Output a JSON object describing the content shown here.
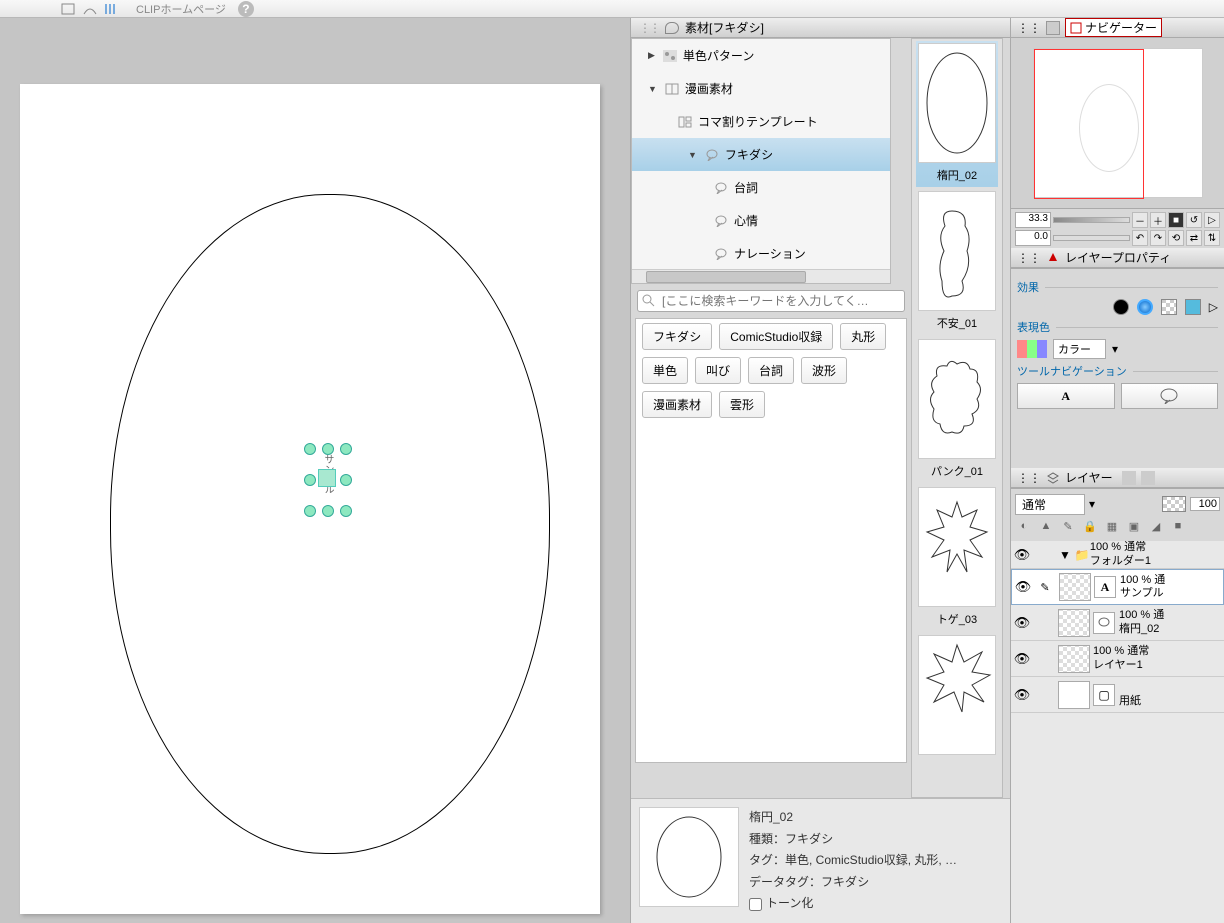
{
  "toolbar": {
    "clip_label": "CLIPホームページ"
  },
  "canvas": {
    "sample_text": "サンプル"
  },
  "materials": {
    "tab_title": "素材[フキダシ]",
    "tree": [
      {
        "label": "単色パターン",
        "lvl": 1,
        "tri": "▶",
        "icon": "pattern"
      },
      {
        "label": "漫画素材",
        "lvl": 1,
        "tri": "▼",
        "icon": "manga"
      },
      {
        "label": "コマ割りテンプレート",
        "lvl": 2,
        "tri": "",
        "icon": "frame"
      },
      {
        "label": "フキダシ",
        "lvl": 3,
        "tri": "▼",
        "icon": "balloon",
        "sel": true
      },
      {
        "label": "台詞",
        "lvl": 4,
        "tri": "",
        "icon": "balloon"
      },
      {
        "label": "心情",
        "lvl": 4,
        "tri": "",
        "icon": "balloon"
      },
      {
        "label": "ナレーション",
        "lvl": 4,
        "tri": "",
        "icon": "balloon"
      }
    ],
    "search_placeholder": "[ここに検索キーワードを入力してく…",
    "tags": [
      "フキダシ",
      "ComicStudio収録",
      "丸形",
      "単色",
      "叫び",
      "台詞",
      "波形",
      "漫画素材",
      "雲形"
    ],
    "thumbs": [
      {
        "label": "楕円_02",
        "shape": "ellipse",
        "sel": true
      },
      {
        "label": "不安_01",
        "shape": "wavy"
      },
      {
        "label": "パンク_01",
        "shape": "cloud"
      },
      {
        "label": "トゲ_03",
        "shape": "spike"
      },
      {
        "label": "",
        "shape": "spike2"
      }
    ],
    "detail": {
      "name": "楕円_02",
      "type_label": "種類：",
      "type": "フキダシ",
      "tags_label": "タグ：",
      "tags": "単色, ComicStudio収録, 丸形, …",
      "datatag_label": "データタグ：",
      "datatag": "フキダシ",
      "tone_label": "トーン化"
    }
  },
  "navigator": {
    "tab": "ナビゲーター",
    "zoom": "33.3",
    "rotation": "0.0"
  },
  "layerprop": {
    "tab": "レイヤープロパティ",
    "effect_label": "効果",
    "color_label": "表現色",
    "color_mode": "カラー",
    "toolnav_label": "ツールナビゲーション"
  },
  "layers": {
    "tab": "レイヤー",
    "blend": "通常",
    "opacity": "100",
    "list": [
      {
        "kind": "folder",
        "line1": "100 % 通常",
        "line2": "フォルダー1"
      },
      {
        "kind": "text",
        "line1": "100 % 通",
        "line2": "サンプル",
        "sel": true
      },
      {
        "kind": "balloon",
        "line1": "100 % 通",
        "line2": "楕円_02"
      },
      {
        "kind": "raster",
        "line1": "100 % 通常",
        "line2": "レイヤー1"
      },
      {
        "kind": "paper",
        "line1": "",
        "line2": "用紙"
      }
    ]
  }
}
